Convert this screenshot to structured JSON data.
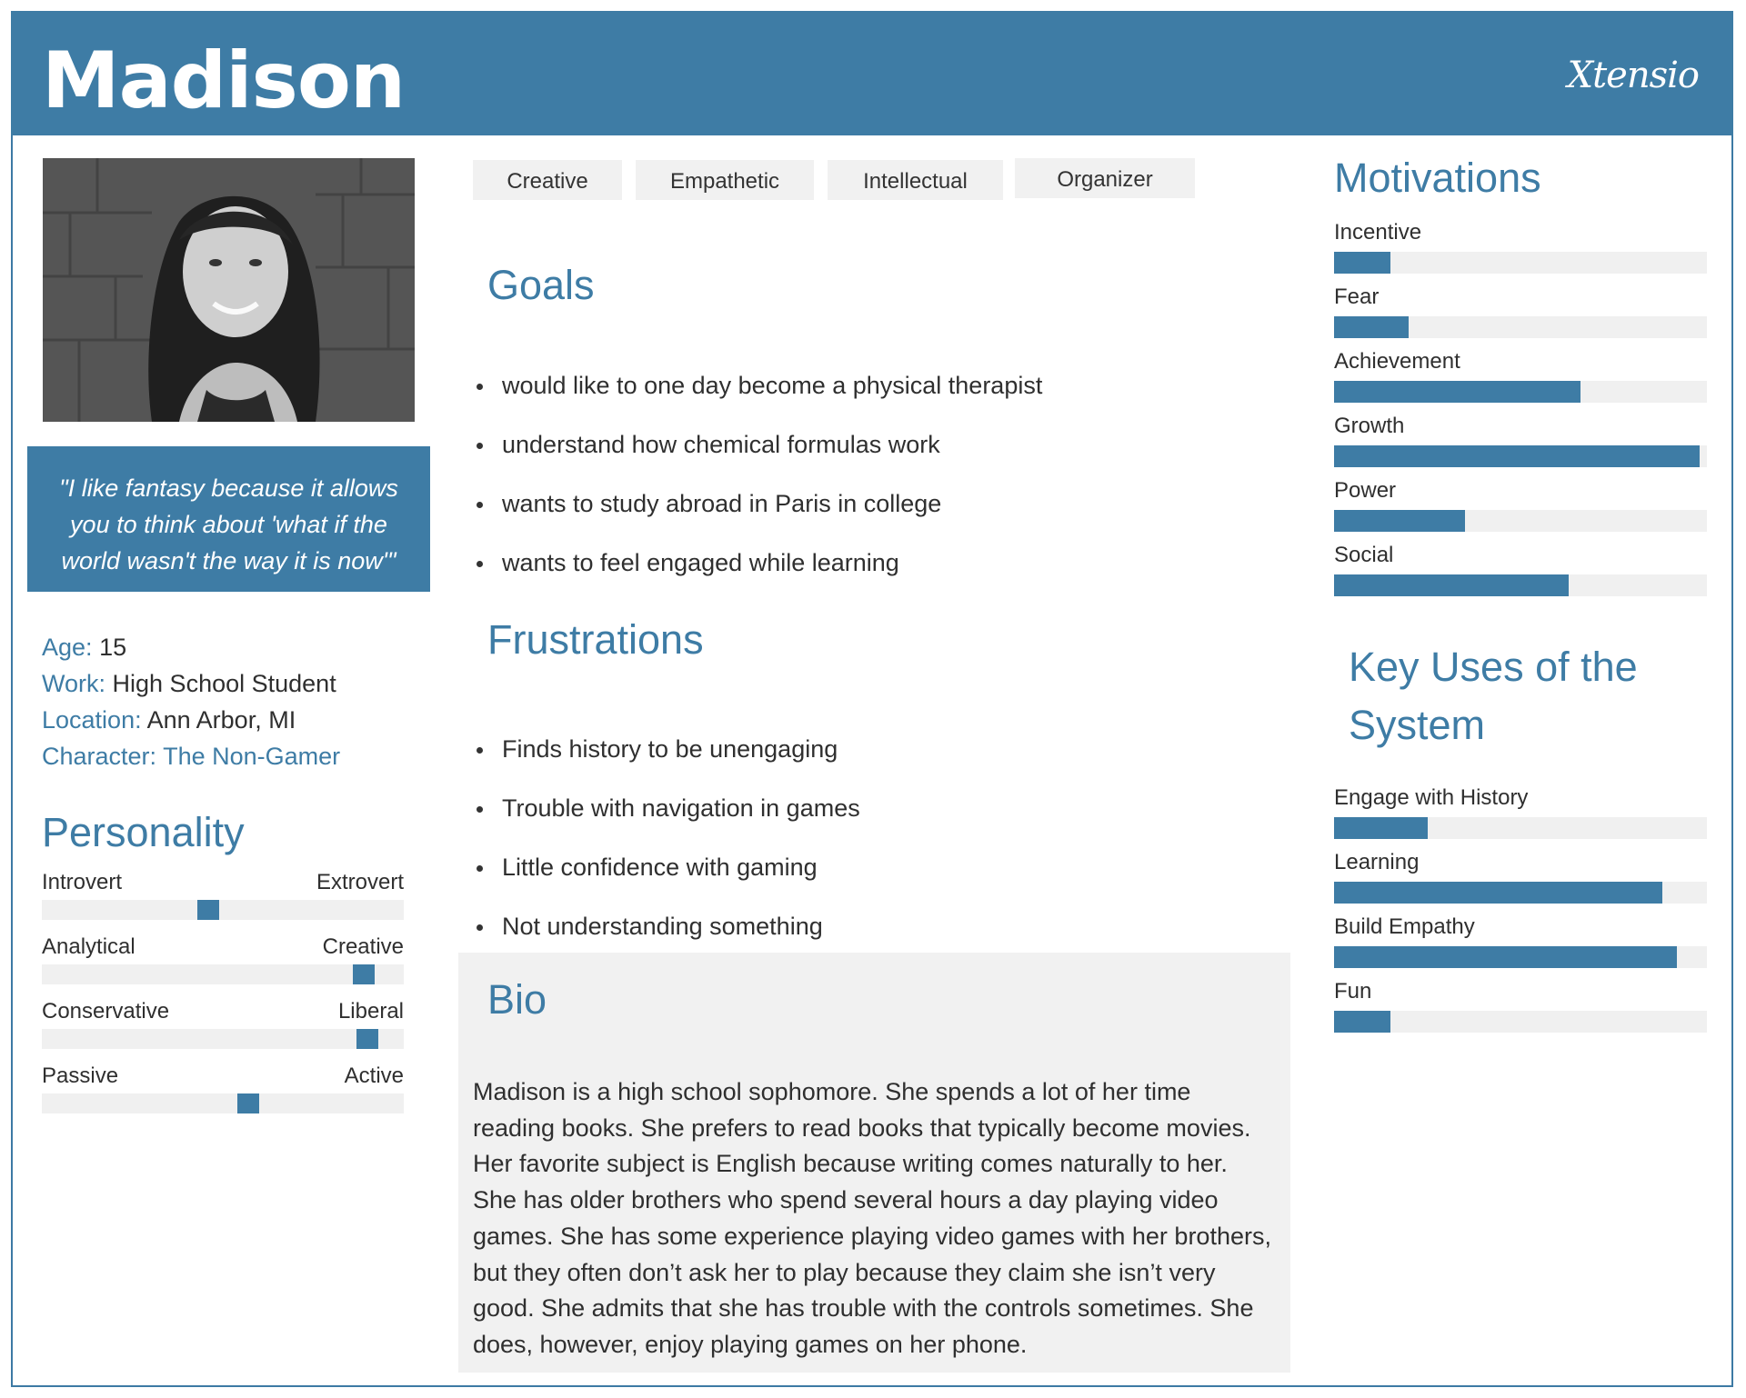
{
  "header": {
    "name": "Madison",
    "brand": "Xtensio"
  },
  "quote": "\"I like fantasy because it allows you to think about 'what if the world wasn't the way it is now'\"",
  "facts": [
    {
      "label": "Age:",
      "value": "15"
    },
    {
      "label": "Work:",
      "value": "High School Student"
    },
    {
      "label": "Location:",
      "value": "Ann Arbor, MI"
    },
    {
      "label": "Character:",
      "value": "The Non-Gamer"
    }
  ],
  "personality": {
    "title": "Personality",
    "traits": [
      {
        "left": "Introvert",
        "right": "Extrovert",
        "level": 0.46
      },
      {
        "left": "Analytical",
        "right": "Creative",
        "level": 0.89
      },
      {
        "left": "Conservative",
        "right": "Liberal",
        "level": 0.9
      },
      {
        "left": "Passive",
        "right": "Active",
        "level": 0.57
      }
    ]
  },
  "tags": [
    "Creative",
    "Empathetic",
    "Intellectual",
    "Organizer"
  ],
  "goals": {
    "title": "Goals",
    "items": [
      "would like to one day become a physical therapist",
      "understand how chemical formulas work",
      "wants to study abroad in Paris in college",
      "wants to feel engaged while learning"
    ]
  },
  "frustrations": {
    "title": "Frustrations",
    "items": [
      "Finds history to be unengaging",
      "Trouble with navigation in games",
      "Little confidence with gaming",
      "Not understanding something"
    ]
  },
  "bio": {
    "title": "Bio",
    "text": "Madison is a high school sophomore. She spends a lot of her time reading books. She prefers to read books that typically become movies. Her favorite subject is English because writing comes naturally to her. She has older brothers who spend several hours a day playing video games. She has some experience playing video games with her brothers, but they often don’t ask her to play because they claim she isn’t very good. She admits that she has trouble with the controls sometimes. She does, however, enjoy playing games on her phone."
  },
  "motivations": {
    "title": "Motivations",
    "items": [
      {
        "label": "Incentive",
        "level": 0.15
      },
      {
        "label": "Fear",
        "level": 0.2
      },
      {
        "label": "Achievement",
        "level": 0.66
      },
      {
        "label": "Growth",
        "level": 0.98
      },
      {
        "label": "Power",
        "level": 0.35
      },
      {
        "label": "Social",
        "level": 0.63
      }
    ]
  },
  "key_uses": {
    "title": "Key Uses of the System",
    "items": [
      {
        "label": "Engage with History",
        "level": 0.25
      },
      {
        "label": "Learning",
        "level": 0.88
      },
      {
        "label": "Build Empathy",
        "level": 0.92
      },
      {
        "label": "Fun",
        "level": 0.15
      }
    ]
  },
  "colors": {
    "accent": "#3e7ca5",
    "track": "#f0f0f0",
    "panel": "#f1f1f1"
  }
}
